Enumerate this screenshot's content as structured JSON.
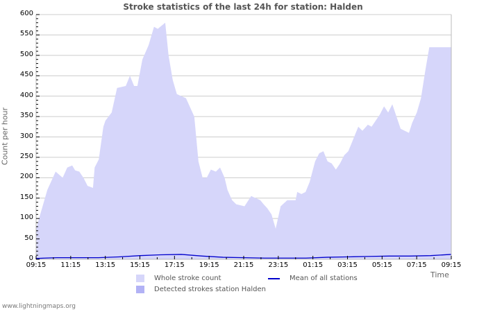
{
  "title": "Stroke statistics of the last 24h for station: Halden",
  "footer": "www.lightningmaps.org",
  "legend": {
    "whole": "Whole stroke count",
    "detected": "Detected strokes station Halden",
    "mean": "Mean of all stations"
  },
  "colors": {
    "whole": "#d6d6fa",
    "detected": "#b2b2f5",
    "mean": "#0000cc",
    "grid": "#cccccc"
  },
  "chart_data": {
    "type": "area",
    "title": "Stroke statistics of the last 24h for station: Halden",
    "xlabel": "Time",
    "ylabel": "Count per hour",
    "ylim": [
      0,
      600
    ],
    "yticks": [
      0,
      50,
      100,
      150,
      200,
      250,
      300,
      350,
      400,
      450,
      500,
      550,
      600
    ],
    "xticks": [
      "09:15",
      "11:15",
      "13:15",
      "15:15",
      "17:15",
      "19:15",
      "21:15",
      "23:15",
      "01:15",
      "03:15",
      "05:15",
      "07:15",
      "09:15"
    ],
    "grid": true,
    "legend_position": "bottom",
    "series": [
      {
        "name": "Whole stroke count",
        "type": "area",
        "x_frac": [
          0.0,
          0.027,
          0.047,
          0.064,
          0.075,
          0.087,
          0.094,
          0.104,
          0.114,
          0.124,
          0.137,
          0.141,
          0.151,
          0.162,
          0.167,
          0.182,
          0.195,
          0.216,
          0.226,
          0.236,
          0.244,
          0.256,
          0.271,
          0.284,
          0.293,
          0.311,
          0.319,
          0.329,
          0.339,
          0.361,
          0.381,
          0.391,
          0.401,
          0.411,
          0.421,
          0.433,
          0.443,
          0.454,
          0.461,
          0.472,
          0.482,
          0.502,
          0.518,
          0.54,
          0.548,
          0.557,
          0.567,
          0.577,
          0.589,
          0.605,
          0.625,
          0.629,
          0.639,
          0.649,
          0.659,
          0.672,
          0.682,
          0.692,
          0.702,
          0.712,
          0.722,
          0.732,
          0.742,
          0.752,
          0.764,
          0.776,
          0.786,
          0.799,
          0.808,
          0.828,
          0.838,
          0.848,
          0.858,
          0.868,
          0.878,
          0.898,
          0.906,
          0.917,
          0.927,
          0.937,
          0.947,
          0.957,
          0.967,
          0.977,
          0.99,
          1.0
        ],
        "values": [
          75,
          170,
          215,
          200,
          225,
          230,
          218,
          215,
          200,
          180,
          175,
          225,
          245,
          325,
          340,
          360,
          420,
          425,
          450,
          425,
          425,
          490,
          525,
          570,
          565,
          580,
          500,
          440,
          405,
          395,
          350,
          240,
          200,
          200,
          220,
          215,
          225,
          200,
          170,
          145,
          135,
          130,
          155,
          145,
          135,
          125,
          110,
          75,
          130,
          145,
          145,
          165,
          160,
          165,
          190,
          240,
          260,
          265,
          240,
          235,
          220,
          235,
          255,
          265,
          295,
          325,
          315,
          330,
          325,
          355,
          375,
          360,
          380,
          350,
          320,
          310,
          335,
          360,
          395,
          460,
          520,
          520,
          520,
          520,
          520,
          520
        ]
      },
      {
        "name": "Detected strokes station Halden",
        "type": "area",
        "values": []
      },
      {
        "name": "Mean of all stations",
        "type": "line",
        "x_frac": [
          0.0,
          0.02,
          0.05,
          0.1,
          0.15,
          0.2,
          0.25,
          0.3,
          0.35,
          0.4,
          0.45,
          0.5,
          0.55,
          0.6,
          0.65,
          0.7,
          0.75,
          0.8,
          0.85,
          0.9,
          0.95,
          1.0
        ],
        "values": [
          2,
          3,
          4,
          4,
          4,
          6,
          9,
          11,
          12,
          8,
          5,
          4,
          3,
          3,
          3,
          5,
          6,
          7,
          8,
          8,
          9,
          12
        ]
      }
    ]
  }
}
